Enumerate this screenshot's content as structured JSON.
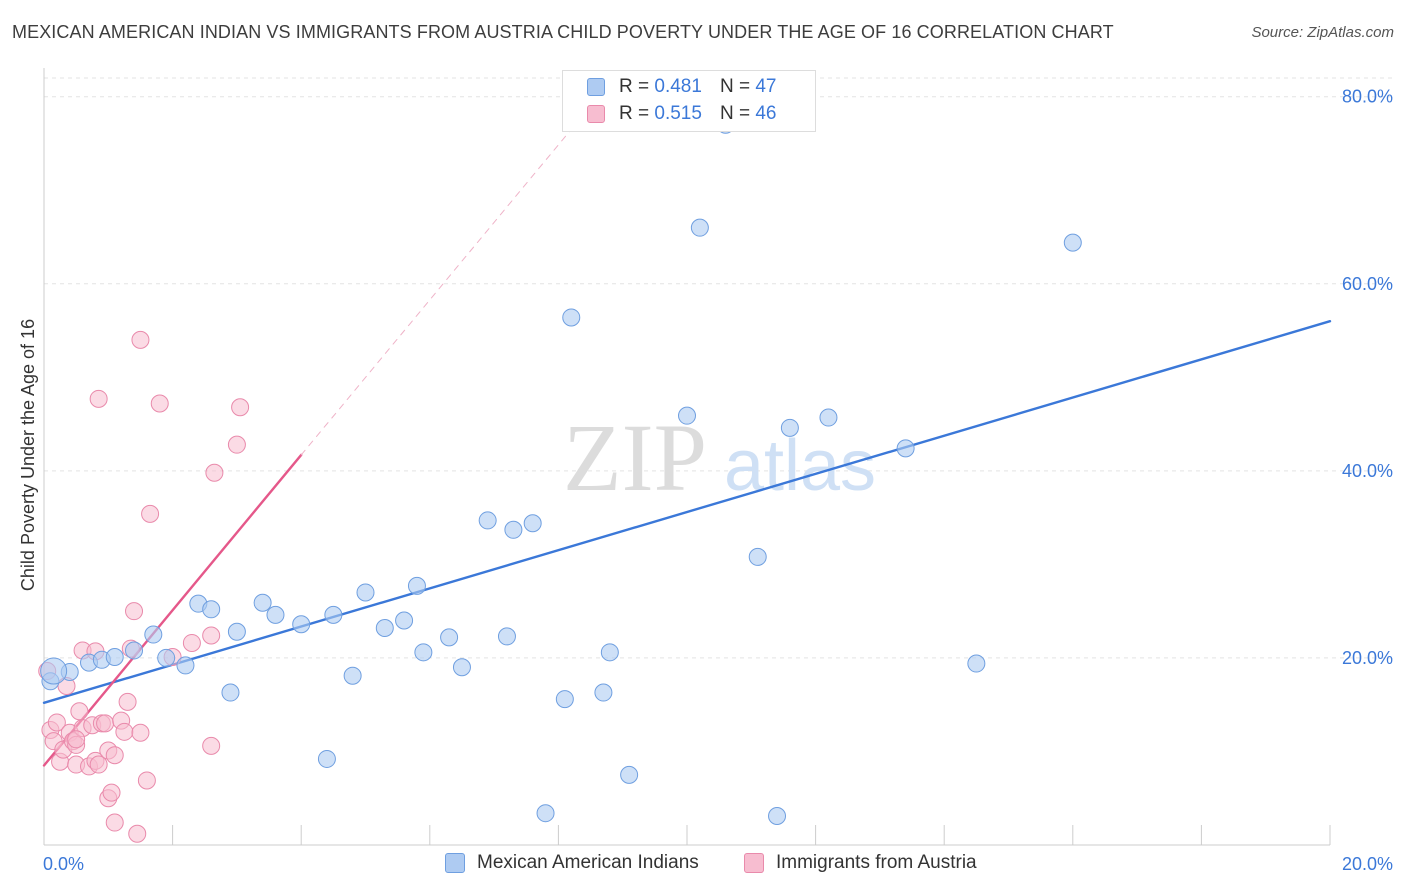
{
  "title": "MEXICAN AMERICAN INDIAN VS IMMIGRANTS FROM AUSTRIA CHILD POVERTY UNDER THE AGE OF 16 CORRELATION CHART",
  "source": "Source: ZipAtlas.com",
  "watermark": {
    "zip": "ZIP",
    "atlas": "atlas"
  },
  "stats": {
    "blue": {
      "r_label": "R = ",
      "r": "0.481",
      "n_label": "N = ",
      "n": "47"
    },
    "pink": {
      "r_label": "R = ",
      "r": "0.515",
      "n_label": "N = ",
      "n": "46"
    }
  },
  "legend": {
    "blue": "Mexican American Indians",
    "pink": "Immigrants from Austria"
  },
  "colors": {
    "blue_fill": "#aecbf2",
    "blue_stroke": "#6f9fe0",
    "blue_line": "#3b78d8",
    "pink_fill": "#f7bdd0",
    "pink_stroke": "#e98aab",
    "pink_line": "#e5588a",
    "grid": "#e3e3e3",
    "tick_text": "#3b78d8"
  },
  "chart_data": {
    "type": "scatter",
    "ylabel": "Child Poverty Under the Age of 16",
    "xlim": [
      0,
      20
    ],
    "ylim": [
      0,
      82
    ],
    "x_tick_labels": [
      "0.0%",
      "20.0%"
    ],
    "y_ticks": [
      20,
      40,
      60,
      80
    ],
    "y_tick_labels": [
      "20.0%",
      "40.0%",
      "60.0%",
      "80.0%"
    ],
    "series": [
      {
        "name": "Mexican American Indians",
        "points": [
          [
            0.1,
            17.5
          ],
          [
            0.4,
            18.5
          ],
          [
            0.7,
            19.5
          ],
          [
            0.9,
            19.8
          ],
          [
            1.1,
            20.1
          ],
          [
            1.4,
            20.8
          ],
          [
            1.7,
            22.5
          ],
          [
            1.9,
            20.0
          ],
          [
            2.2,
            19.2
          ],
          [
            2.4,
            25.8
          ],
          [
            2.6,
            25.2
          ],
          [
            2.9,
            16.3
          ],
          [
            3.0,
            22.8
          ],
          [
            3.4,
            25.9
          ],
          [
            3.6,
            24.6
          ],
          [
            4.0,
            23.6
          ],
          [
            4.4,
            9.2
          ],
          [
            4.5,
            24.6
          ],
          [
            4.8,
            18.1
          ],
          [
            5.0,
            27.0
          ],
          [
            5.3,
            23.2
          ],
          [
            5.6,
            24.0
          ],
          [
            5.8,
            27.7
          ],
          [
            5.9,
            20.6
          ],
          [
            6.3,
            22.2
          ],
          [
            6.5,
            19.0
          ],
          [
            6.9,
            34.7
          ],
          [
            7.2,
            22.3
          ],
          [
            7.3,
            33.7
          ],
          [
            7.6,
            34.4
          ],
          [
            7.8,
            3.4
          ],
          [
            8.1,
            15.6
          ],
          [
            8.2,
            56.4
          ],
          [
            8.7,
            16.3
          ],
          [
            8.8,
            20.6
          ],
          [
            9.1,
            7.5
          ],
          [
            10.0,
            45.9
          ],
          [
            10.2,
            66.0
          ],
          [
            10.6,
            77.0
          ],
          [
            11.1,
            30.8
          ],
          [
            11.4,
            3.1
          ],
          [
            11.6,
            44.6
          ],
          [
            12.2,
            45.7
          ],
          [
            13.4,
            42.4
          ],
          [
            14.5,
            19.4
          ],
          [
            16.0,
            64.4
          ],
          [
            0.15,
            18.6
          ]
        ]
      },
      {
        "name": "Immigrants from Austria",
        "points": [
          [
            0.05,
            18.6
          ],
          [
            0.1,
            12.3
          ],
          [
            0.15,
            11.1
          ],
          [
            0.2,
            13.1
          ],
          [
            0.25,
            8.9
          ],
          [
            0.3,
            10.2
          ],
          [
            0.35,
            17.0
          ],
          [
            0.4,
            12.0
          ],
          [
            0.45,
            11.1
          ],
          [
            0.5,
            10.7
          ],
          [
            0.5,
            8.6
          ],
          [
            0.55,
            14.3
          ],
          [
            0.6,
            20.8
          ],
          [
            0.6,
            12.5
          ],
          [
            0.7,
            8.4
          ],
          [
            0.75,
            12.8
          ],
          [
            0.8,
            9.0
          ],
          [
            0.8,
            20.7
          ],
          [
            0.85,
            47.7
          ],
          [
            0.85,
            8.6
          ],
          [
            0.9,
            13.0
          ],
          [
            0.95,
            13.0
          ],
          [
            1.0,
            10.1
          ],
          [
            1.0,
            5.0
          ],
          [
            1.05,
            5.6
          ],
          [
            1.1,
            9.6
          ],
          [
            1.1,
            2.4
          ],
          [
            1.2,
            13.3
          ],
          [
            1.25,
            12.1
          ],
          [
            1.3,
            15.3
          ],
          [
            1.35,
            21.0
          ],
          [
            1.4,
            25.0
          ],
          [
            1.45,
            1.2
          ],
          [
            1.5,
            12.0
          ],
          [
            1.5,
            54.0
          ],
          [
            1.6,
            6.9
          ],
          [
            1.65,
            35.4
          ],
          [
            1.8,
            47.2
          ],
          [
            2.0,
            20.1
          ],
          [
            2.3,
            21.6
          ],
          [
            2.6,
            22.4
          ],
          [
            2.6,
            10.6
          ],
          [
            2.65,
            39.8
          ],
          [
            3.0,
            42.8
          ],
          [
            3.05,
            46.8
          ],
          [
            0.5,
            11.3
          ]
        ]
      }
    ],
    "trendlines": [
      {
        "series": "Mexican American Indians",
        "x": [
          0,
          20
        ],
        "y": [
          15.2,
          56.0
        ],
        "style": "solid"
      },
      {
        "series": "Immigrants from Austria",
        "x": [
          0,
          4.0
        ],
        "y": [
          8.5,
          41.7
        ],
        "style": "solid"
      },
      {
        "series": "Immigrants from Austria",
        "x": [
          4.0,
          8.5
        ],
        "y": [
          41.7,
          79.0
        ],
        "style": "dashed"
      }
    ]
  }
}
